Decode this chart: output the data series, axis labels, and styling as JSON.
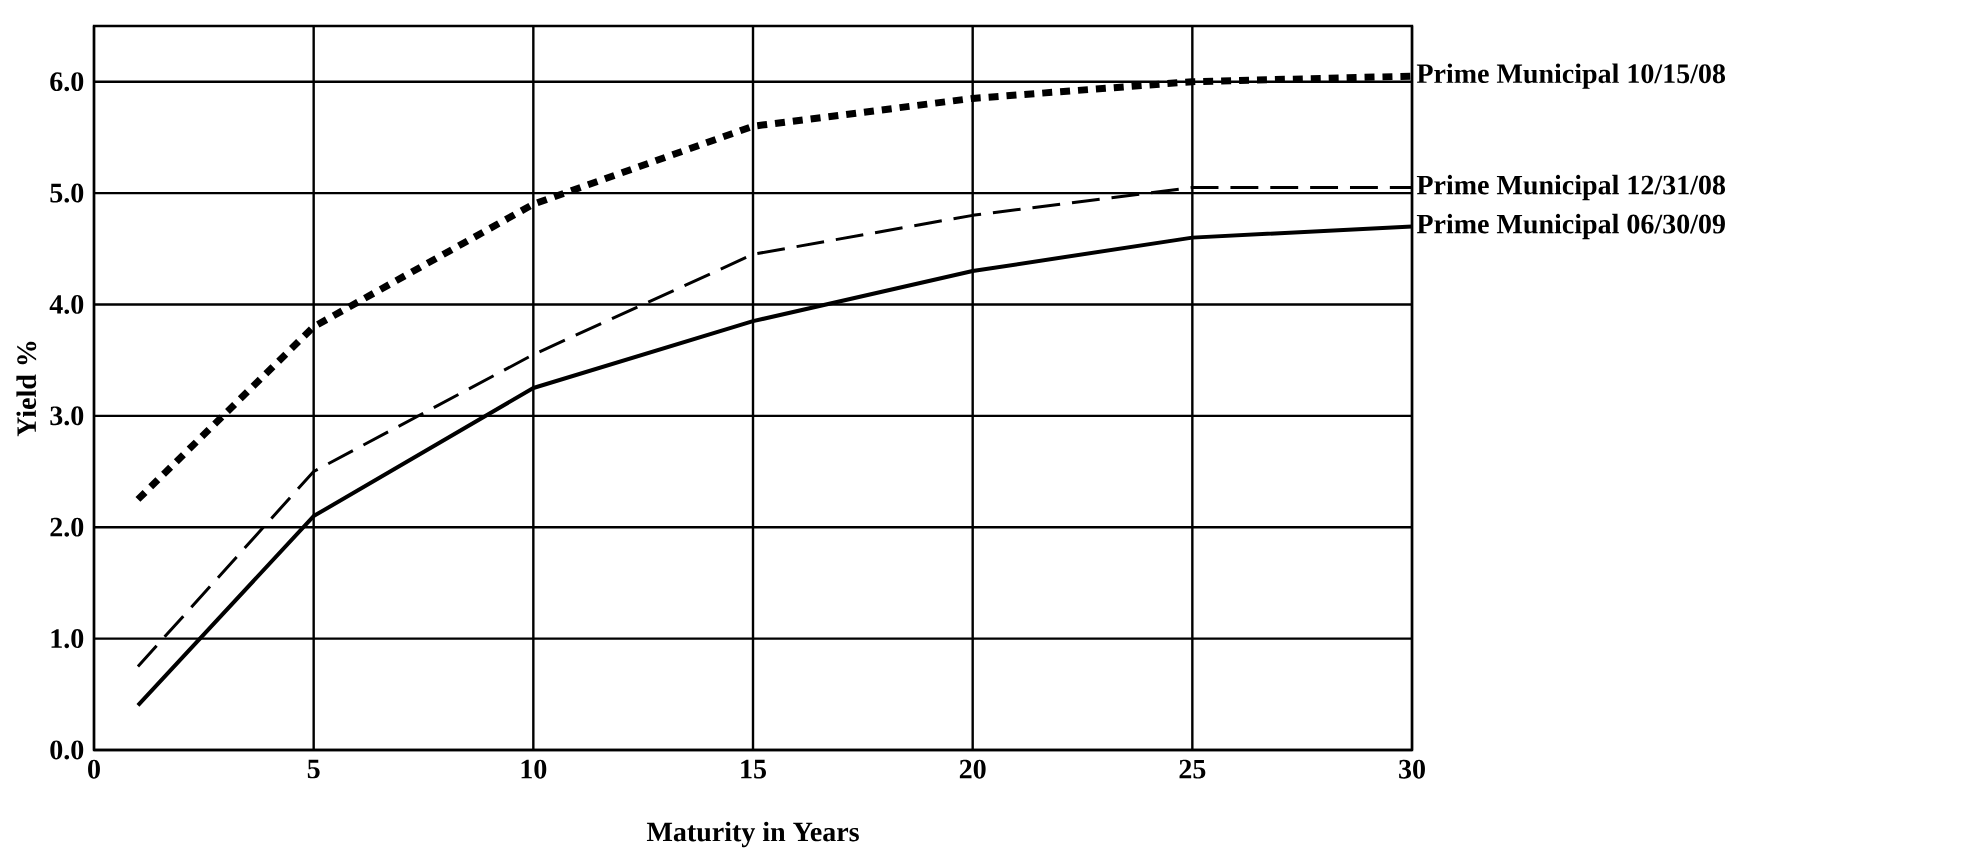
{
  "chart_data": {
    "type": "line",
    "xlabel": "Maturity in Years",
    "ylabel": "Yield %",
    "xlim": [
      0,
      30
    ],
    "xticks": [
      0,
      5,
      10,
      15,
      20,
      25,
      30
    ],
    "ylim": [
      0,
      6.5
    ],
    "yticks": [
      {
        "value": 0,
        "label": "0.0"
      },
      {
        "value": 1,
        "label": "1.0"
      },
      {
        "value": 2,
        "label": "2.0"
      },
      {
        "value": 3,
        "label": "3.0"
      },
      {
        "value": 4,
        "label": "4.0"
      },
      {
        "value": 5,
        "label": "5.0"
      },
      {
        "value": 6,
        "label": "6.0"
      }
    ],
    "grid": true,
    "legend": false,
    "marker": "none",
    "series": [
      {
        "name": "Prime Municipal 10/15/08",
        "color": "#000000",
        "line_style": "dotted",
        "x": [
          1,
          5,
          10,
          15,
          20,
          25,
          30
        ],
        "values": [
          2.25,
          3.8,
          4.9,
          5.6,
          5.85,
          6.0,
          6.05
        ]
      },
      {
        "name": "Prime Municipal 12/31/08",
        "color": "#000000",
        "line_style": "dashed",
        "x": [
          1,
          5,
          10,
          15,
          20,
          25,
          30
        ],
        "values": [
          0.75,
          2.5,
          3.55,
          4.45,
          4.8,
          5.05,
          5.05
        ]
      },
      {
        "name": "Prime Municipal 06/30/09",
        "color": "#000000",
        "line_style": "solid",
        "x": [
          1,
          5,
          10,
          15,
          20,
          25,
          30
        ],
        "values": [
          0.4,
          2.1,
          3.25,
          3.85,
          4.3,
          4.6,
          4.7
        ]
      }
    ]
  }
}
